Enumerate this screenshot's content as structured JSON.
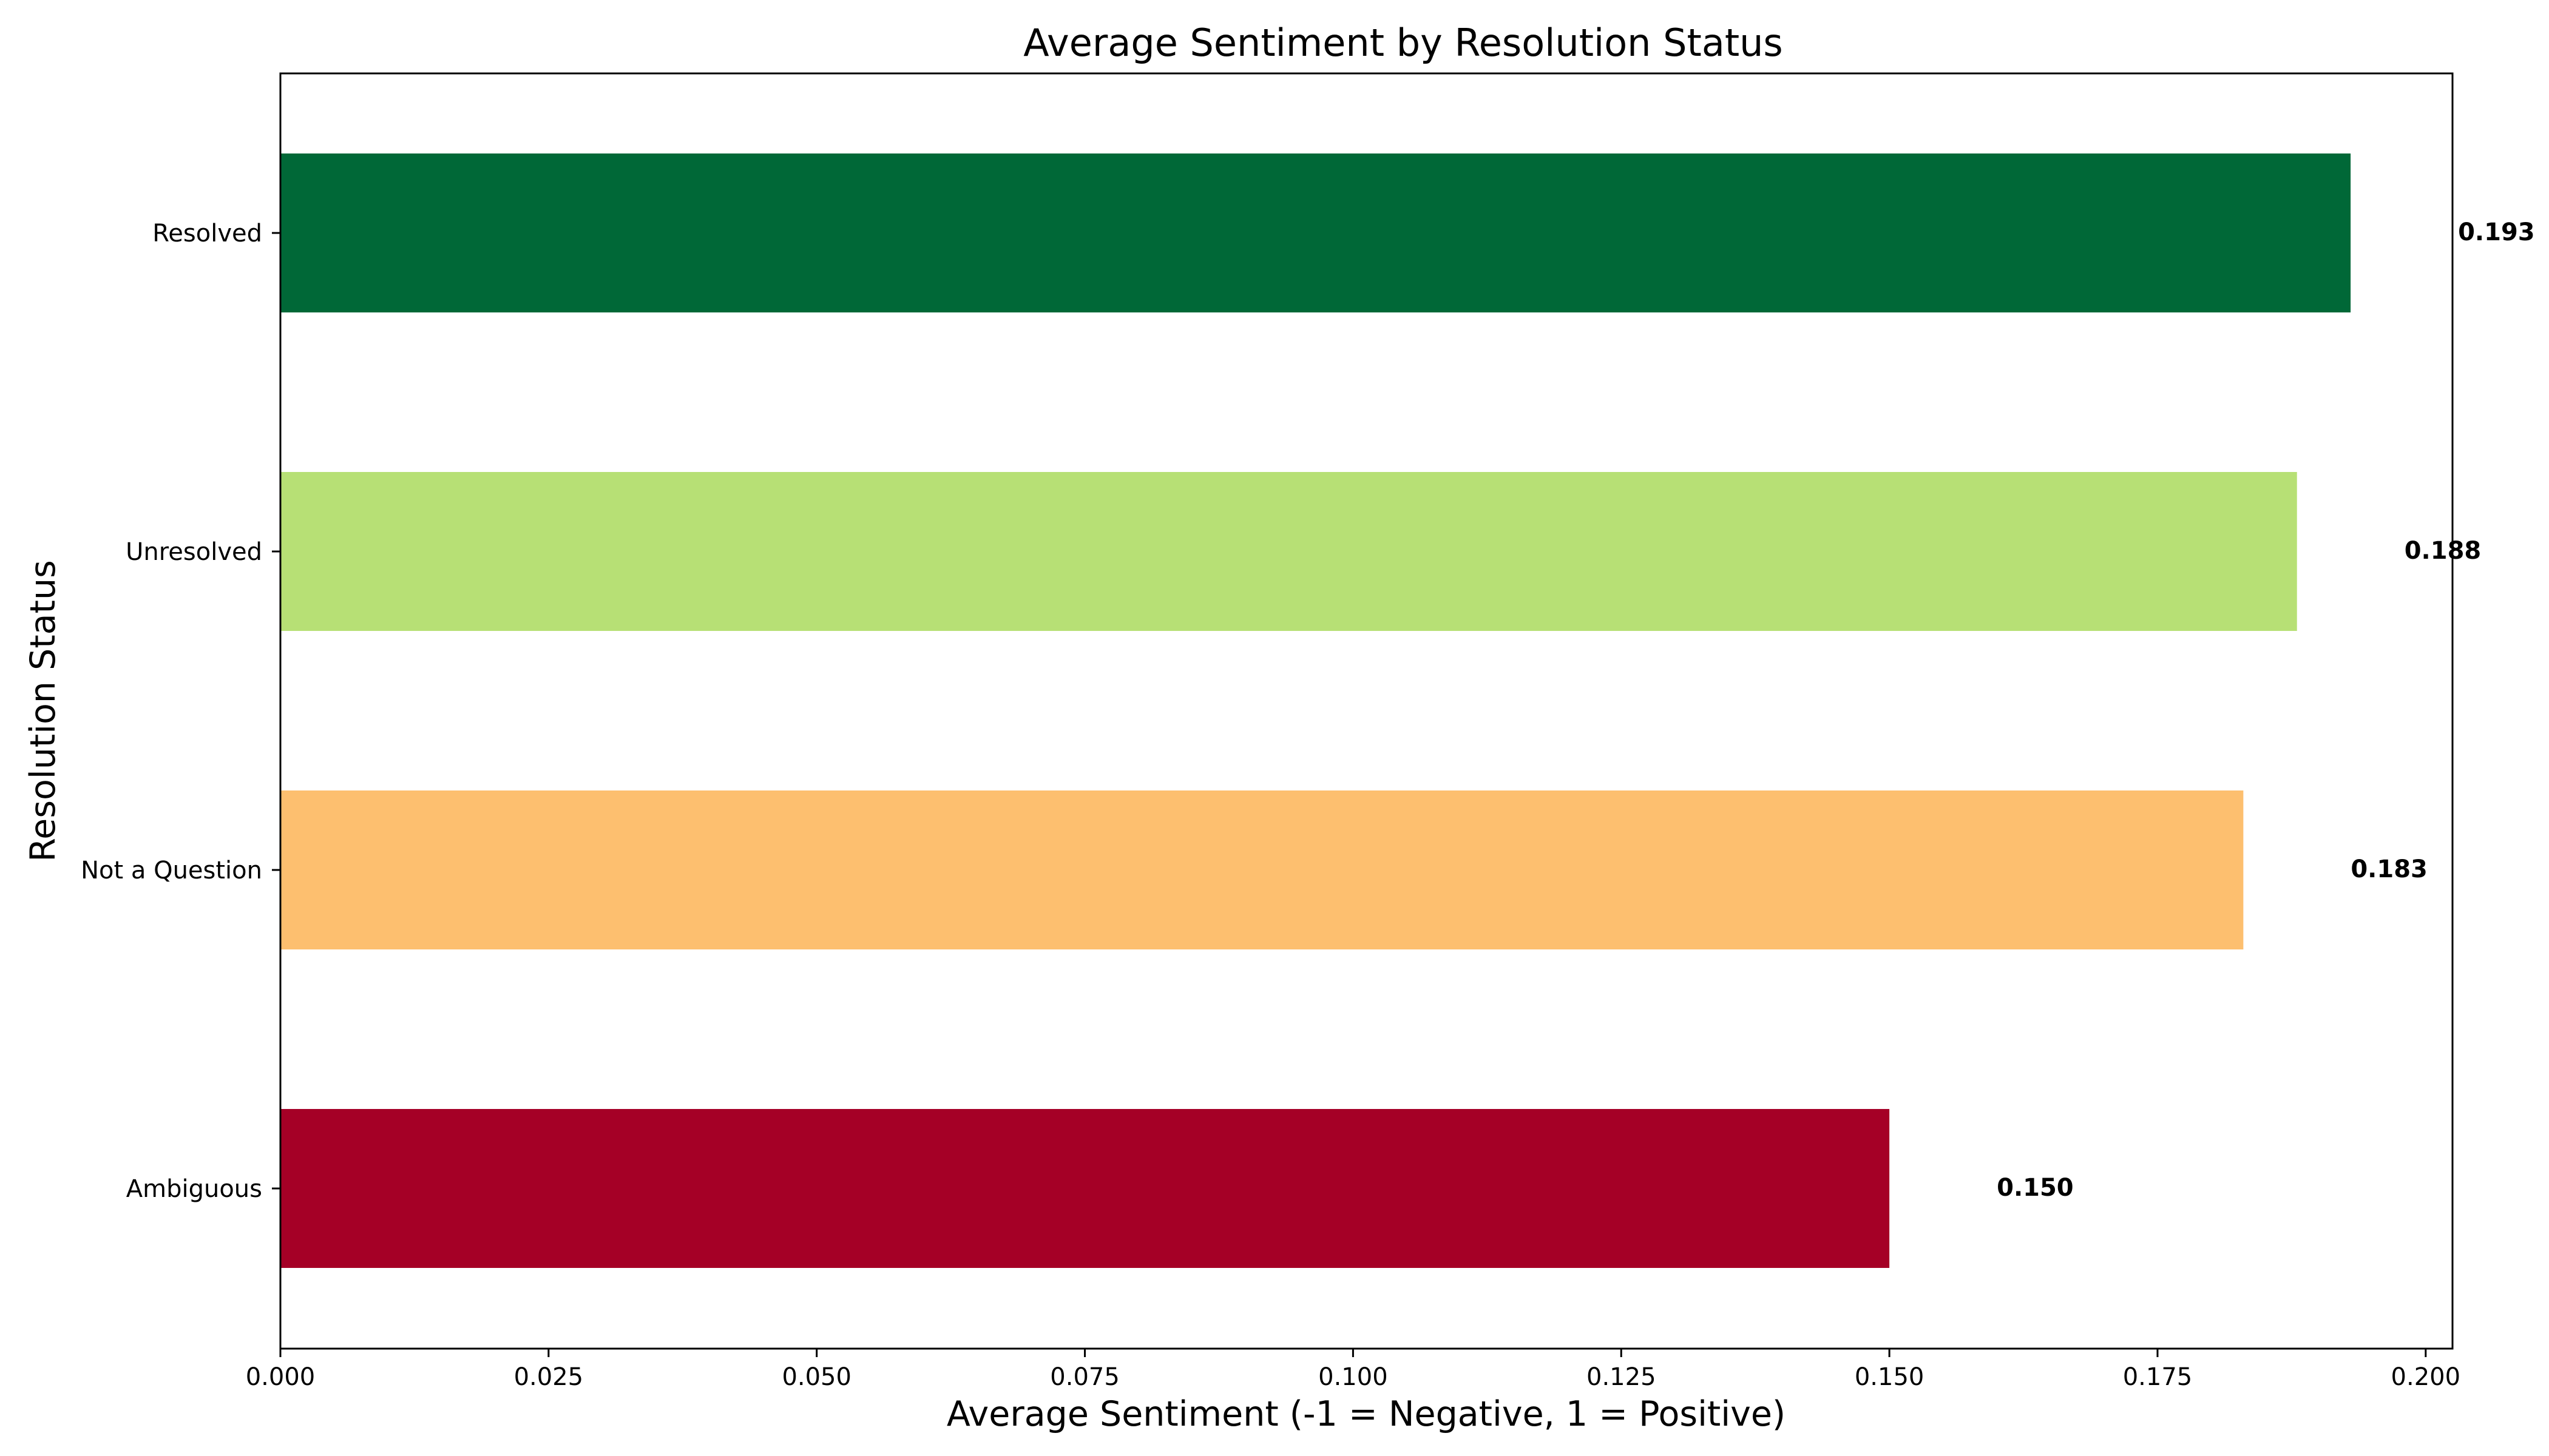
{
  "chart_data": {
    "type": "bar",
    "orientation": "horizontal",
    "title": "Average Sentiment by Resolution Status",
    "xlabel": "Average Sentiment (-1 = Negative, 1 = Positive)",
    "ylabel": "Resolution Status",
    "categories": [
      "Resolved",
      "Unresolved",
      "Not a Question",
      "Ambiguous"
    ],
    "values": [
      0.193,
      0.188,
      0.183,
      0.15
    ],
    "value_labels": [
      "0.193",
      "0.188",
      "0.183",
      "0.150"
    ],
    "colors": [
      "#006837",
      "#b7e075",
      "#fdbf6f",
      "#a50026"
    ],
    "xlim": [
      0.0,
      0.2025
    ],
    "xticks": [
      0.0,
      0.025,
      0.05,
      0.075,
      0.1,
      0.125,
      0.15,
      0.175,
      0.2
    ],
    "xtick_labels": [
      "0.000",
      "0.025",
      "0.050",
      "0.075",
      "0.100",
      "0.125",
      "0.150",
      "0.175",
      "0.200"
    ],
    "grid": false,
    "legend": "none",
    "reference_line": {
      "x": 0.0,
      "style": "dashed"
    }
  }
}
